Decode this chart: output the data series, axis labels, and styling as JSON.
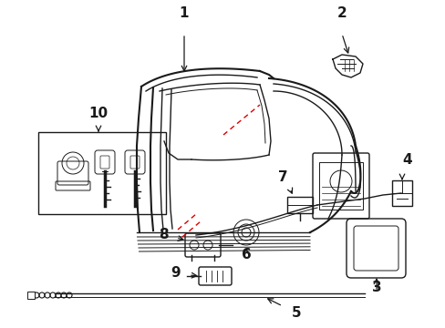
{
  "bg_color": "#ffffff",
  "line_color": "#1a1a1a",
  "red_color": "#dd0000",
  "figsize": [
    4.89,
    3.6
  ],
  "dpi": 100,
  "xlim": [
    0,
    489
  ],
  "ylim": [
    0,
    360
  ]
}
